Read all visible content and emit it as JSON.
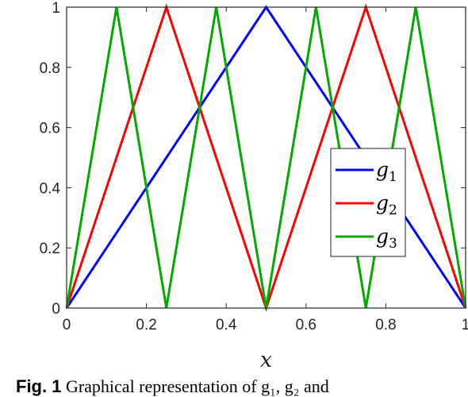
{
  "chart_data": {
    "type": "line",
    "xlabel": "x",
    "ylabel": "",
    "xlim": [
      0,
      1
    ],
    "ylim": [
      0,
      1
    ],
    "xticks": [
      0,
      0.2,
      0.4,
      0.6,
      0.8,
      1
    ],
    "xtick_labels": [
      "0",
      "0.2",
      "0.4",
      "0.6",
      "0.8",
      "1"
    ],
    "yticks": [
      0,
      0.2,
      0.4,
      0.6,
      0.8,
      1
    ],
    "ytick_labels": [
      "0",
      "0.2",
      "0.4",
      "0.6",
      "0.8",
      "1"
    ],
    "grid": false,
    "legend_position": "center-right",
    "series": [
      {
        "name": "g",
        "subscript": "1",
        "color": "#0000ff",
        "x": [
          0,
          0.5,
          1
        ],
        "y": [
          0,
          1,
          0
        ]
      },
      {
        "name": "g",
        "subscript": "2",
        "color": "#ff0000",
        "x": [
          0,
          0.25,
          0.5,
          0.75,
          1
        ],
        "y": [
          0,
          1,
          0,
          1,
          0
        ]
      },
      {
        "name": "g",
        "subscript": "3",
        "color": "#00aa00",
        "x": [
          0,
          0.125,
          0.25,
          0.375,
          0.5,
          0.625,
          0.75,
          0.875,
          1
        ],
        "y": [
          0,
          1,
          0,
          1,
          0,
          1,
          0,
          1,
          0
        ]
      }
    ]
  },
  "caption": {
    "label": "Fig. 1",
    "text": "Graphical representation of g₁, g₂ and"
  }
}
